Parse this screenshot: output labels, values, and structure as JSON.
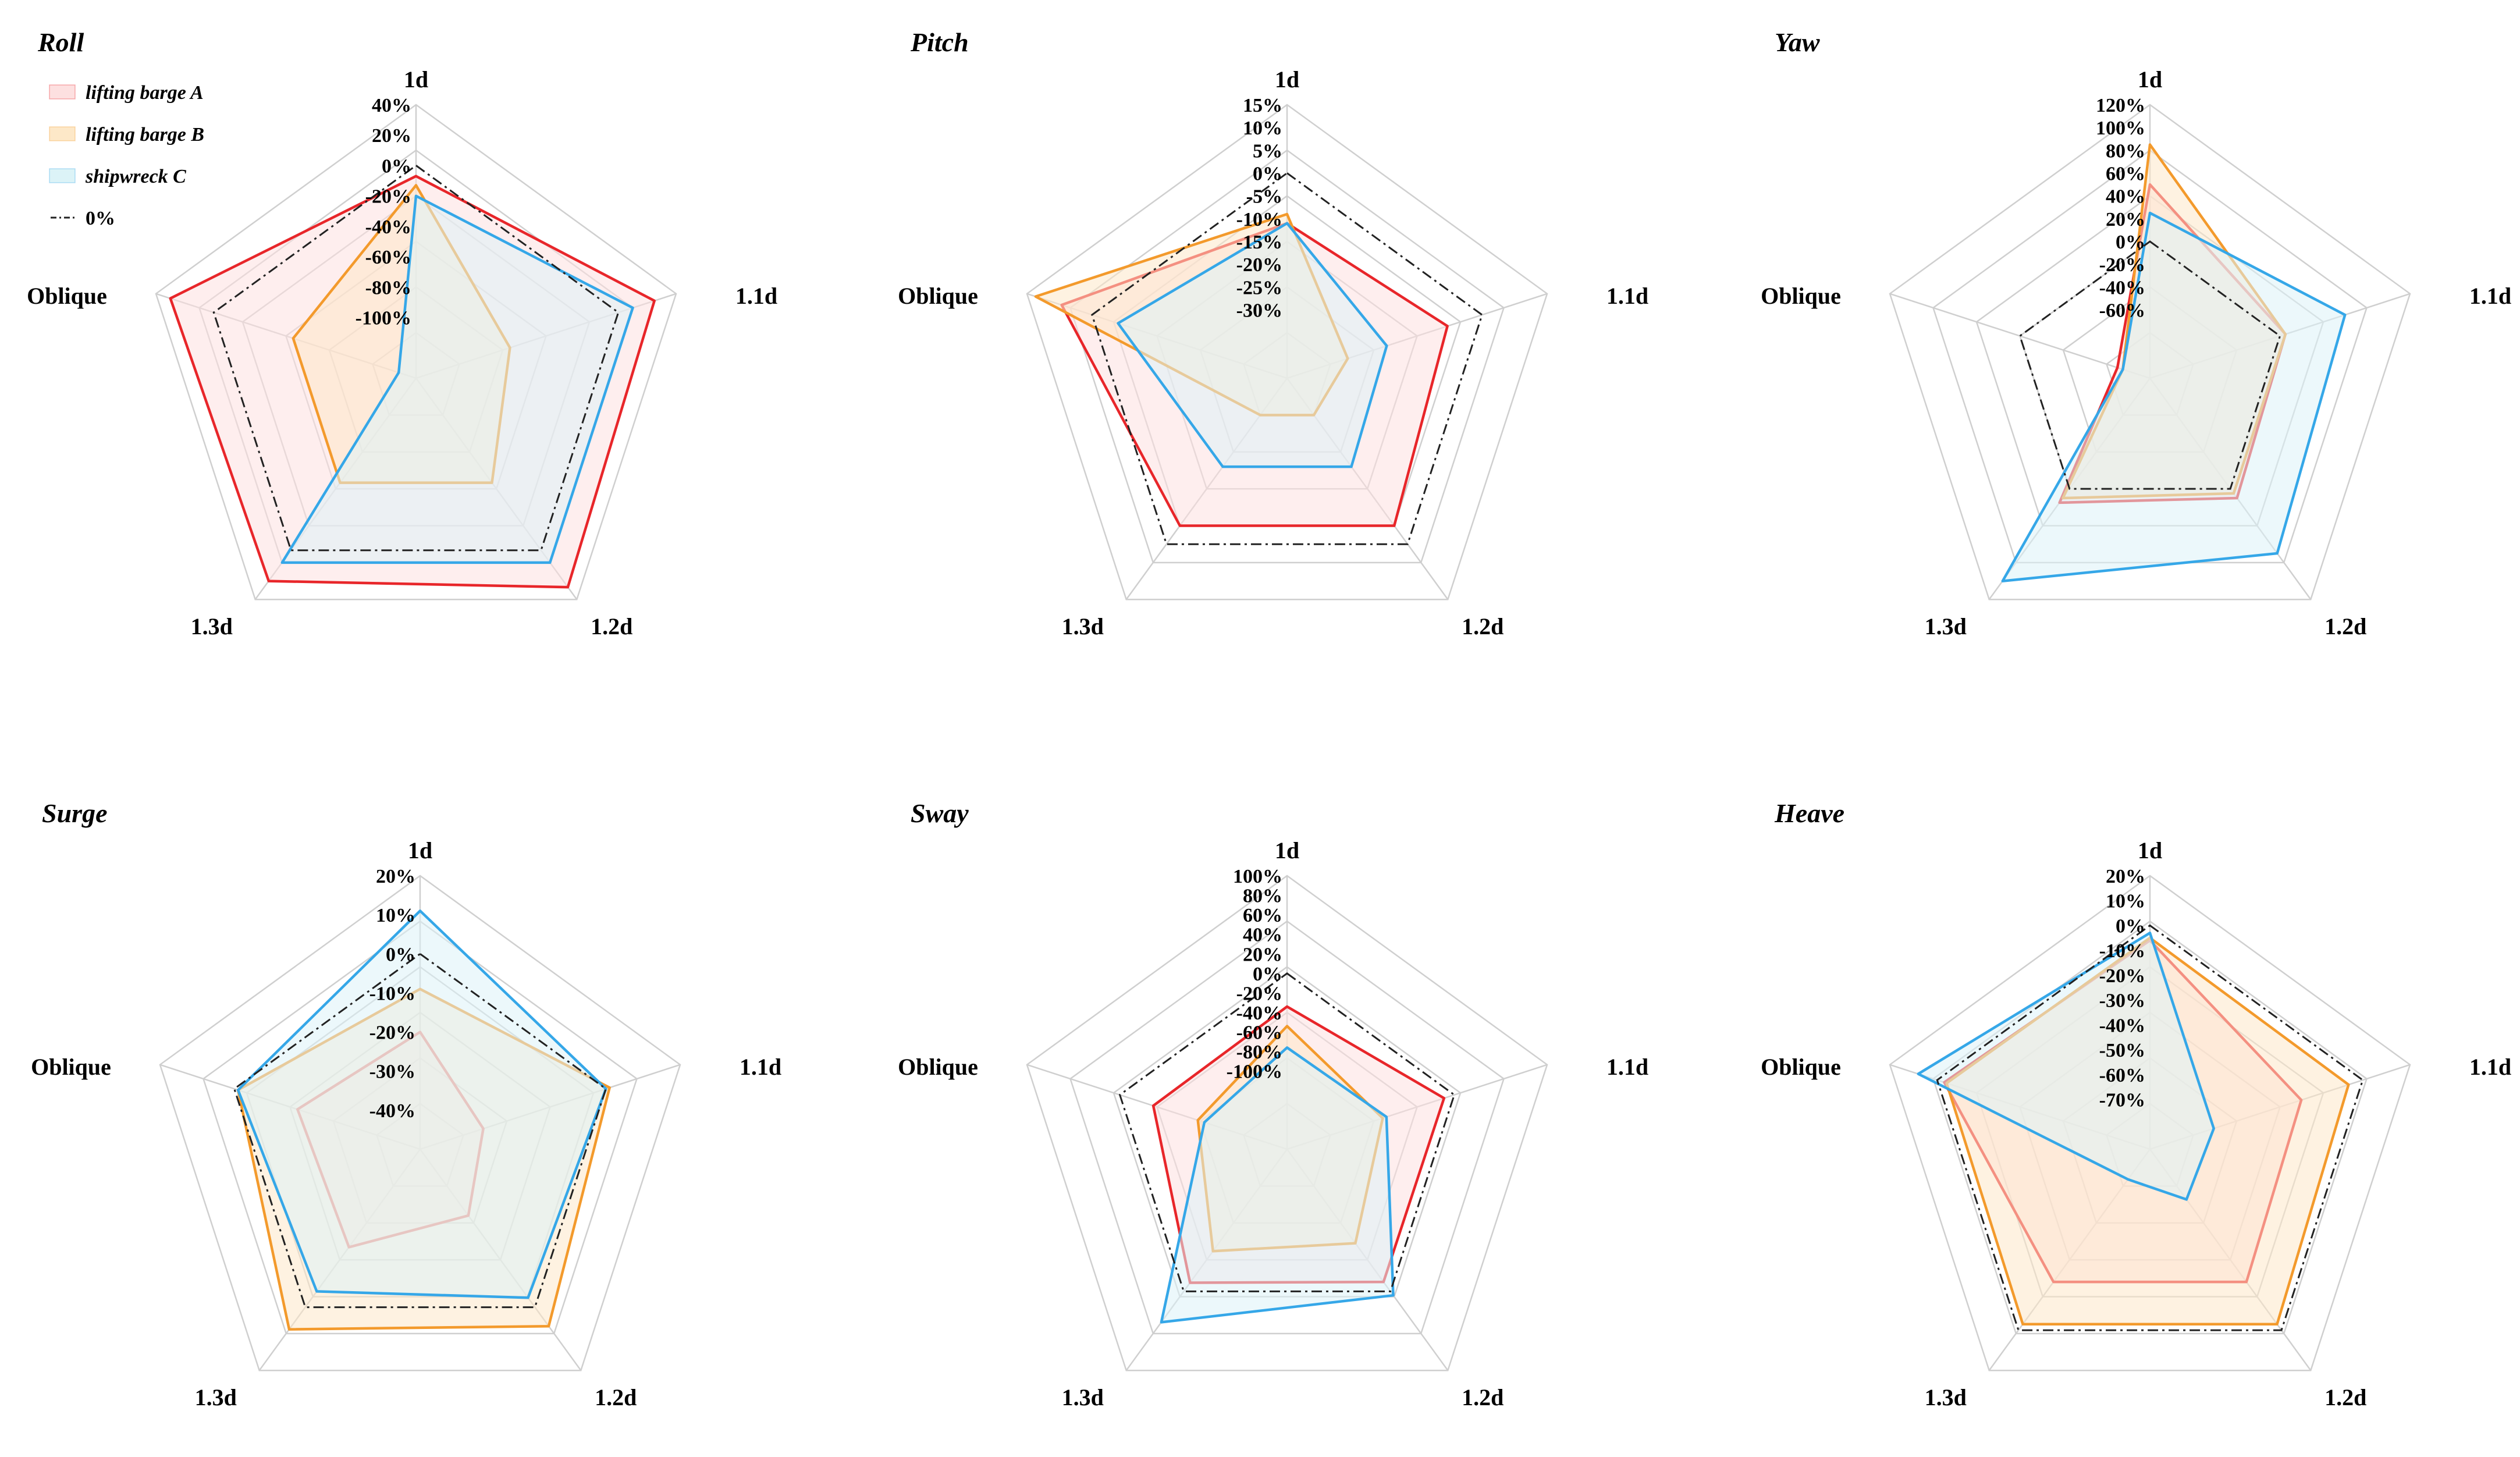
{
  "chart_data": [
    {
      "type": "radar",
      "title": "Roll",
      "axes": [
        "1d",
        "1.1d",
        "1.2d",
        "1.3d",
        "Oblique"
      ],
      "ticks": [
        "40%",
        "20%",
        "0%",
        "-20%",
        "-40%",
        "-60%",
        "-80%",
        "-100%"
      ],
      "range": [
        -140,
        40
      ],
      "series": [
        {
          "name": "lifting barge A",
          "values": [
            -7,
            25,
            30,
            25,
            30
          ]
        },
        {
          "name": "lifting barge B",
          "values": [
            -13,
            -75,
            -55,
            -55,
            -55
          ]
        },
        {
          "name": "shipwreck C",
          "values": [
            -20,
            10,
            10,
            10,
            -128
          ]
        }
      ],
      "zero_line": "0%"
    },
    {
      "type": "radar",
      "title": "Pitch",
      "axes": [
        "1d",
        "1.1d",
        "1.2d",
        "1.3d",
        "Oblique"
      ],
      "ticks": [
        "15%",
        "10%",
        "5%",
        "0%",
        "-5%",
        "-10%",
        "-15%",
        "-20%",
        "-25%",
        "-30%"
      ],
      "range": [
        -45,
        15
      ],
      "series": [
        {
          "name": "lifting barge A",
          "values": [
            -11,
            -8,
            -5,
            -5,
            7
          ]
        },
        {
          "name": "lifting barge B",
          "values": [
            -9,
            -31,
            -35,
            -35,
            13
          ]
        },
        {
          "name": "shipwreck C",
          "values": [
            -11,
            -22,
            -21,
            -21,
            -6
          ]
        }
      ],
      "zero_line": "0%"
    },
    {
      "type": "radar",
      "title": "Yaw",
      "axes": [
        "1d",
        "1.1d",
        "1.2d",
        "1.3d",
        "Oblique"
      ],
      "ticks": [
        "120%",
        "100%",
        "80%",
        "60%",
        "40%",
        "20%",
        "0%",
        "-20%",
        "-40%",
        "-60%"
      ],
      "range": [
        -120,
        120
      ],
      "series": [
        {
          "name": "lifting barge A",
          "values": [
            50,
            5,
            10,
            15,
            -90
          ]
        },
        {
          "name": "lifting barge B",
          "values": [
            85,
            5,
            5,
            10,
            -95
          ]
        },
        {
          "name": "shipwreck C",
          "values": [
            25,
            60,
            70,
            100,
            -95
          ]
        }
      ],
      "zero_line": "0%"
    },
    {
      "type": "radar",
      "title": "Surge",
      "axes": [
        "1d",
        "1.1d",
        "1.2d",
        "1.3d",
        "Oblique"
      ],
      "ticks": [
        "20%",
        "10%",
        "0%",
        "-10%",
        "-20%",
        "-30%",
        "-40%"
      ],
      "range": [
        -50,
        20
      ],
      "series": [
        {
          "name": "lifting barge A",
          "values": [
            -20,
            -33,
            -29,
            -19,
            -17
          ]
        },
        {
          "name": "lifting barge B",
          "values": [
            -9,
            1,
            6,
            7,
            -1
          ]
        },
        {
          "name": "shipwreck C",
          "values": [
            11,
            0,
            -3,
            -5,
            -1
          ]
        }
      ],
      "zero_line": "0%"
    },
    {
      "type": "radar",
      "title": "Sway",
      "axes": [
        "1d",
        "1.1d",
        "1.2d",
        "1.3d",
        "Oblique"
      ],
      "ticks": [
        "100%",
        "80%",
        "60%",
        "40%",
        "20%",
        "0%",
        "-20%",
        "-40%",
        "-60%",
        "-80%",
        "-100%"
      ],
      "range": [
        -180,
        100
      ],
      "series": [
        {
          "name": "lifting barge A",
          "values": [
            -34,
            -11,
            -12,
            -11,
            -36
          ]
        },
        {
          "name": "lifting barge B",
          "values": [
            -54,
            -77,
            -61,
            -51,
            -84
          ]
        },
        {
          "name": "shipwreck C",
          "values": [
            -76,
            -73,
            5,
            39,
            -91
          ]
        }
      ],
      "zero_line": "0%"
    },
    {
      "type": "radar",
      "title": "Heave",
      "axes": [
        "1d",
        "1.1d",
        "1.2d",
        "1.3d",
        "Oblique"
      ],
      "ticks": [
        "20%",
        "10%",
        "0%",
        "-10%",
        "-20%",
        "-30%",
        "-40%",
        "-50%",
        "-60%",
        "-70%"
      ],
      "range": [
        -90,
        20
      ],
      "series": [
        {
          "name": "lifting barge A",
          "values": [
            -6,
            -26,
            -24,
            -24,
            -3
          ]
        },
        {
          "name": "lifting barge B",
          "values": [
            -5,
            -6,
            -3,
            -3,
            -4
          ]
        },
        {
          "name": "shipwreck C",
          "values": [
            -3,
            -63,
            -65,
            -75,
            8
          ]
        }
      ],
      "zero_line": "0%"
    }
  ],
  "legend": {
    "items": [
      {
        "label": "lifting barge A",
        "stroke": "#e8262a",
        "fill": "#fde0e0"
      },
      {
        "label": "lifting barge B",
        "stroke": "#f39a2c",
        "fill": "#fde8c8"
      },
      {
        "label": "shipwreck C",
        "stroke": "#35a7e8",
        "fill": "#dcf3f7"
      }
    ],
    "zero_label": "0%"
  },
  "colors": {
    "grid": "#cfcfcf",
    "zero_line": "#222222"
  }
}
